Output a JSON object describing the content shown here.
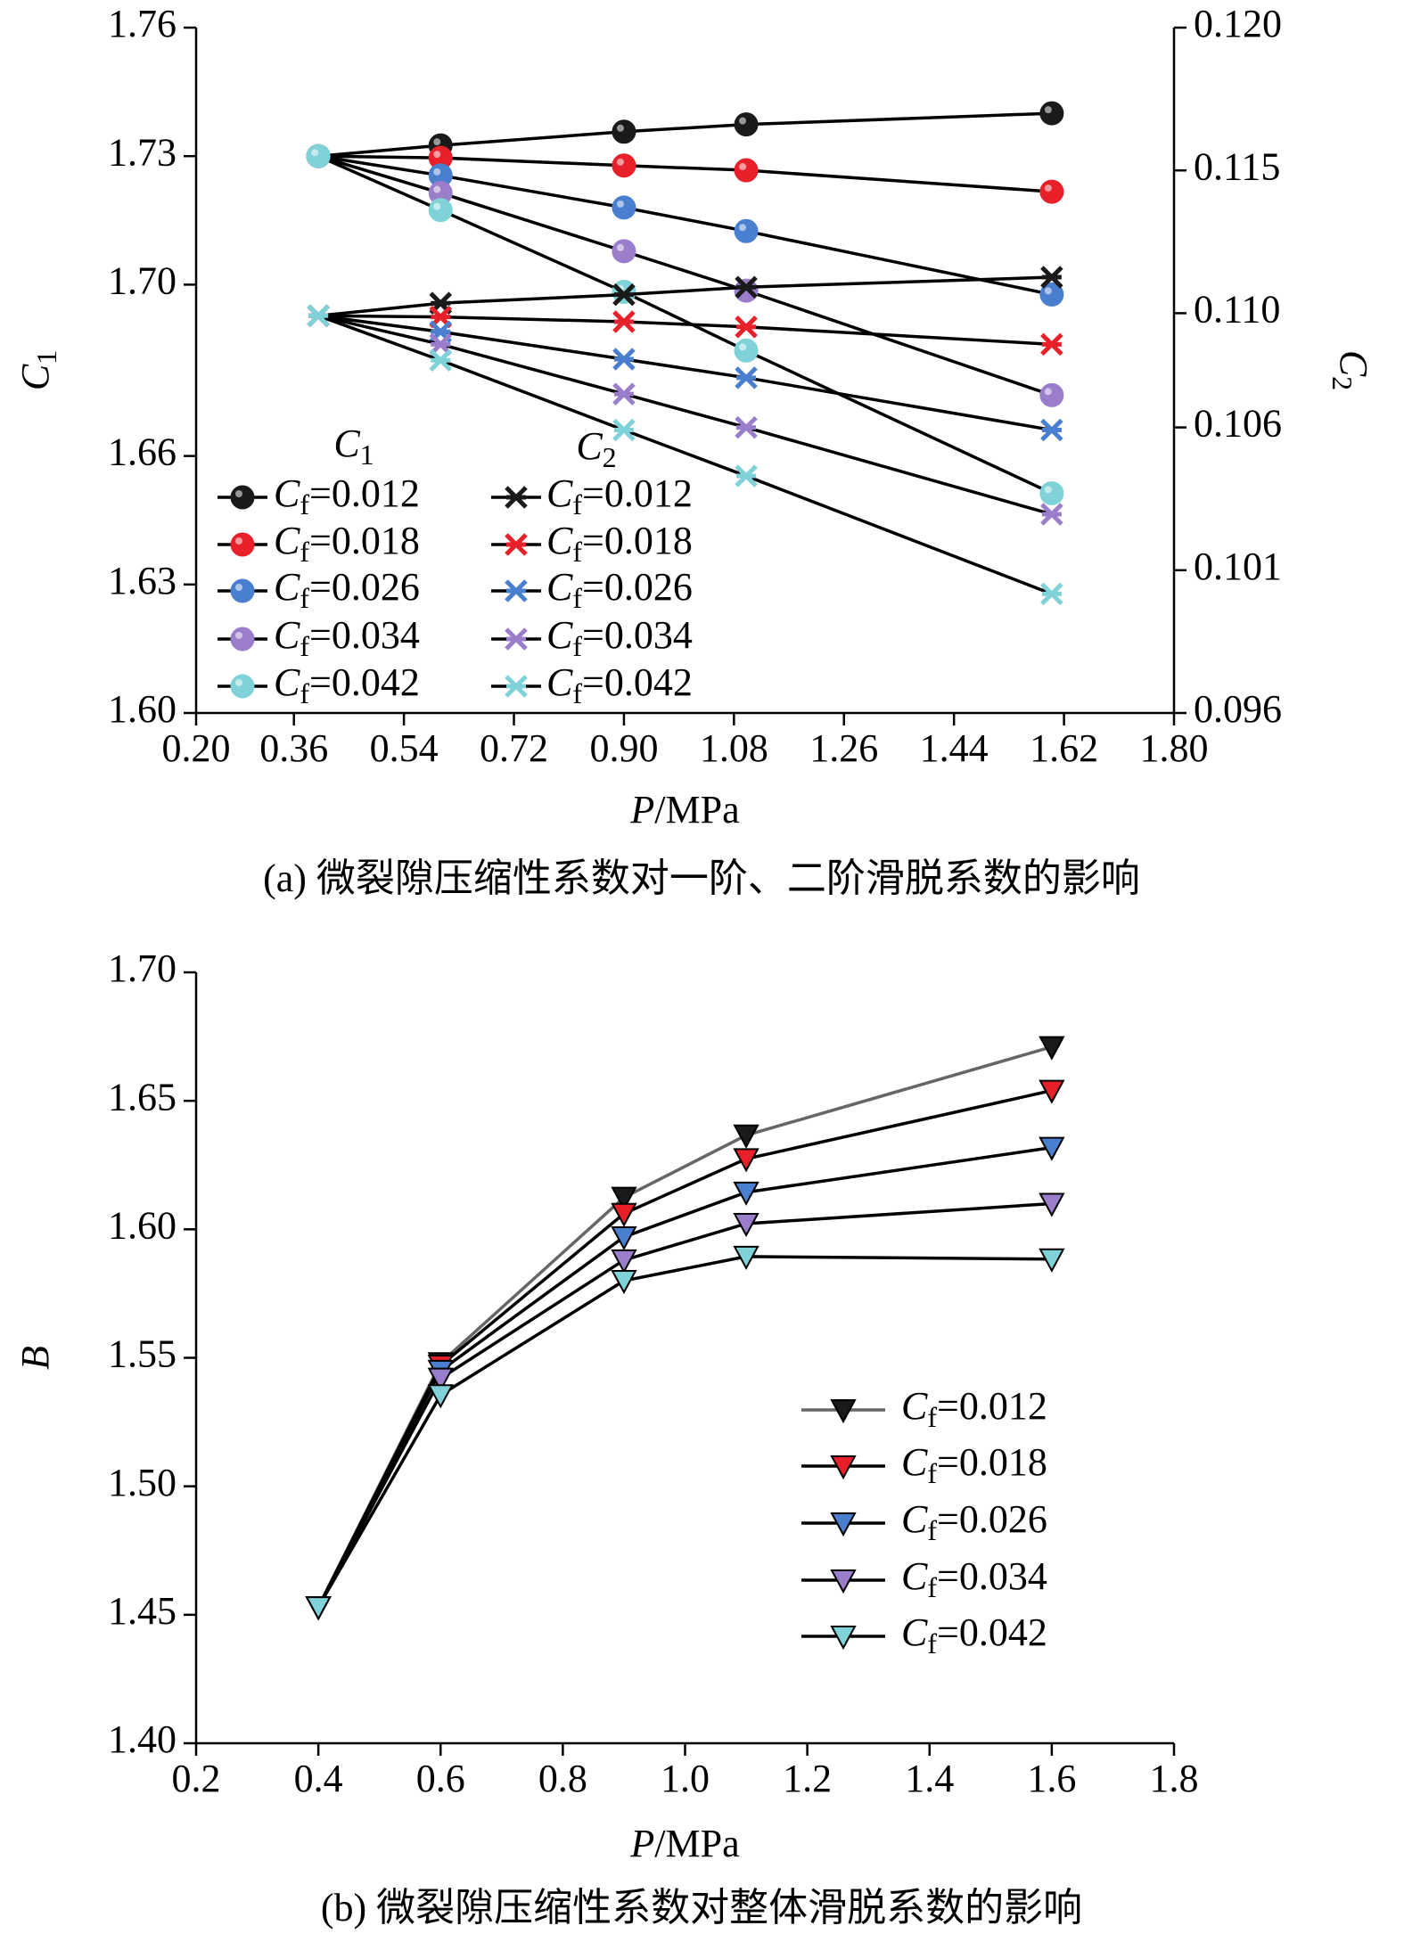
{
  "chart_data": [
    {
      "type": "line",
      "caption": "(a) 微裂隙压缩性系数对一阶、二阶滑脱系数的影响",
      "xlabel": "P/MPa",
      "ylabel": "C1",
      "y2label": "C2",
      "x": [
        0.4,
        0.6,
        0.9,
        1.1,
        1.6
      ],
      "xlim": [
        0.2,
        1.8
      ],
      "xticks": [
        {
          "value": 0.2,
          "label": "0.20"
        },
        0.36,
        0.54,
        0.72,
        {
          "value": 0.9,
          "label": "0.90"
        },
        1.08,
        1.26,
        1.44,
        1.62,
        {
          "value": 1.8,
          "label": "1.80"
        }
      ],
      "ylim": [
        1.6,
        1.76
      ],
      "yticks": [
        {
          "value": 1.6,
          "label": "1.60"
        },
        1.63,
        1.66,
        {
          "value": 1.7,
          "label": "1.70"
        },
        1.73,
        1.76
      ],
      "y2lim": [
        0.096,
        0.12
      ],
      "y2ticks": [
        0.096,
        0.101,
        0.106,
        {
          "value": 0.11,
          "label": "0.110"
        },
        0.115,
        {
          "value": 0.12,
          "label": "0.120"
        }
      ],
      "legend_titles": [
        "C1",
        "C2"
      ],
      "series": [
        {
          "name": "Cf=0.012",
          "color": "#1a1a1a",
          "line_color": "#000000",
          "marker": "circle",
          "values": [
            1.73,
            1.7325,
            1.7357,
            1.7374,
            1.74
          ]
        },
        {
          "name": "Cf=0.018",
          "color": "#e8202a",
          "line_color": "#000000",
          "marker": "circle",
          "values": [
            1.73,
            1.7296,
            1.7278,
            1.7267,
            1.7217
          ]
        },
        {
          "name": "Cf=0.026",
          "color": "#4a7fcf",
          "line_color": "#000000",
          "marker": "circle",
          "values": [
            1.73,
            1.7255,
            1.718,
            1.7125,
            1.6977
          ]
        },
        {
          "name": "Cf=0.034",
          "color": "#9b7ecb",
          "line_color": "#000000",
          "marker": "circle",
          "values": [
            1.73,
            1.7214,
            1.7078,
            1.6986,
            1.6742
          ]
        },
        {
          "name": "Cf=0.042",
          "color": "#7fd3d8",
          "line_color": "#000000",
          "marker": "circle",
          "values": [
            1.73,
            1.7174,
            1.6983,
            1.6846,
            1.6513
          ]
        },
        {
          "name": "Cf=0.012",
          "color": "#1a1a1a",
          "line_color": "#000000",
          "marker": "star",
          "axis": "y2",
          "values": [
            0.10991,
            0.11035,
            0.11065,
            0.11091,
            0.11126
          ]
        },
        {
          "name": "Cf=0.018",
          "color": "#e8202a",
          "line_color": "#000000",
          "marker": "star",
          "axis": "y2",
          "values": [
            0.10991,
            0.10987,
            0.1097,
            0.10952,
            0.10891
          ]
        },
        {
          "name": "Cf=0.026",
          "color": "#4a7fcf",
          "line_color": "#000000",
          "marker": "star",
          "axis": "y2",
          "values": [
            0.10991,
            0.10935,
            0.10839,
            0.10774,
            0.10591
          ]
        },
        {
          "name": "Cf=0.034",
          "color": "#9b7ecb",
          "line_color": "#000000",
          "marker": "star",
          "axis": "y2",
          "values": [
            0.10991,
            0.10891,
            0.10717,
            0.106,
            0.10296
          ]
        },
        {
          "name": "Cf=0.042",
          "color": "#7fd3d8",
          "line_color": "#000000",
          "marker": "star",
          "axis": "y2",
          "values": [
            0.10991,
            0.10835,
            0.10591,
            0.1043,
            0.10017
          ]
        }
      ]
    },
    {
      "type": "line",
      "caption": "(b) 微裂隙压缩性系数对整体滑脱系数的影响",
      "xlabel": "P/MPa",
      "ylabel": "B",
      "x": [
        0.4,
        0.6,
        0.9,
        1.1,
        1.6
      ],
      "xlim": [
        0.2,
        1.8
      ],
      "xticks": [
        0.2,
        0.4,
        0.6,
        0.8,
        {
          "value": 1.0,
          "label": "1.0"
        },
        1.2,
        1.4,
        1.6,
        1.8
      ],
      "ylim": [
        1.4,
        1.7
      ],
      "yticks": [
        {
          "value": 1.4,
          "label": "1.40"
        },
        1.45,
        {
          "value": 1.5,
          "label": "1.50"
        },
        1.55,
        {
          "value": 1.6,
          "label": "1.60"
        },
        1.65,
        {
          "value": 1.7,
          "label": "1.70"
        }
      ],
      "series": [
        {
          "name": "Cf=0.012",
          "color": "#1a1a1a",
          "line_color": "#666666",
          "marker": "triangle",
          "values": [
            1.453,
            1.548,
            1.6124,
            1.6366,
            1.671
          ]
        },
        {
          "name": "Cf=0.018",
          "color": "#e8202a",
          "line_color": "#000000",
          "marker": "triangle",
          "values": [
            1.453,
            1.547,
            1.6061,
            1.6274,
            1.654
          ]
        },
        {
          "name": "Cf=0.026",
          "color": "#4a7fcf",
          "line_color": "#000000",
          "marker": "triangle",
          "values": [
            1.453,
            1.545,
            1.597,
            1.6144,
            1.6318
          ]
        },
        {
          "name": "Cf=0.034",
          "color": "#9b7ecb",
          "line_color": "#000000",
          "marker": "triangle",
          "values": [
            1.453,
            1.542,
            1.588,
            1.6022,
            1.61
          ]
        },
        {
          "name": "Cf=0.042",
          "color": "#7fd3d8",
          "line_color": "#000000",
          "marker": "triangle",
          "values": [
            1.453,
            1.5355,
            1.58,
            1.5894,
            1.5884
          ]
        }
      ]
    }
  ]
}
